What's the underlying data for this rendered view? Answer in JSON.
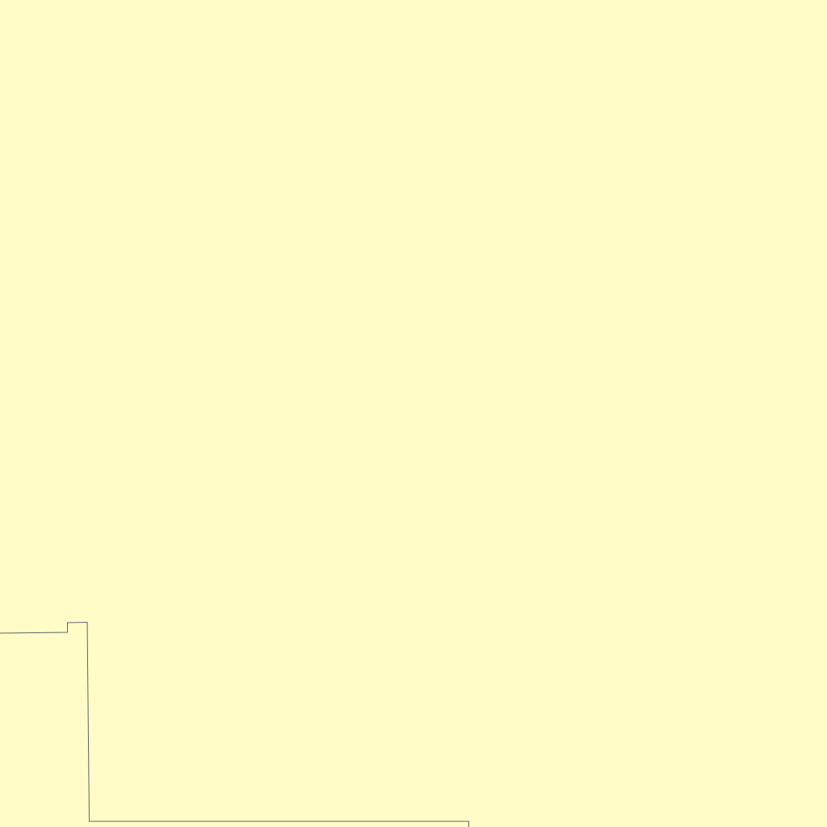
{
  "map": {
    "background_color": "#FFFCC8",
    "boundary_color": "#5F6368"
  }
}
